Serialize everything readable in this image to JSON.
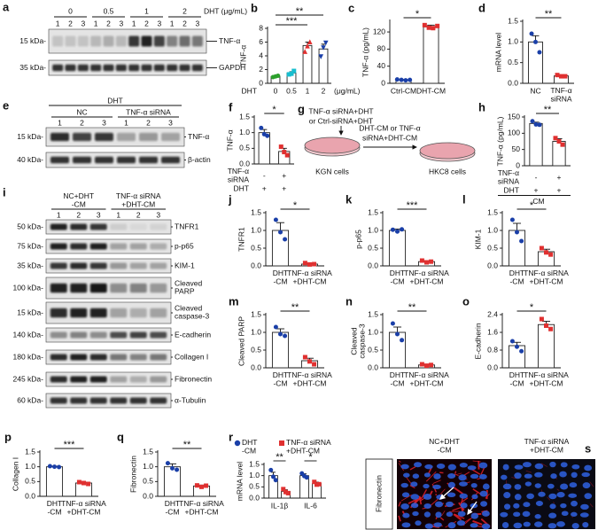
{
  "chart_data": [
    {
      "type": "bar",
      "label": "b",
      "ylabel": "TNF-α",
      "xlabel": "DHT",
      "xunit": "(μg/mL)",
      "categories": [
        "0",
        "0.5",
        "1",
        "2"
      ],
      "values": [
        1.0,
        1.5,
        5.5,
        5.0
      ],
      "errors": [
        0.1,
        0.2,
        0.5,
        0.7
      ],
      "points": [
        [
          0.9,
          1.0,
          1.1
        ],
        [
          1.3,
          1.4,
          1.8
        ],
        [
          4.6,
          5.4,
          6.0
        ],
        [
          3.9,
          5.2,
          5.9
        ]
      ],
      "colors": [
        "#2ca02c",
        "#17becf",
        "#e03030",
        "#1a3fa8"
      ],
      "markers": [
        "circle",
        "square",
        "triangle",
        "triangle-down"
      ],
      "ylim": [
        0,
        8
      ],
      "yticks": [
        0,
        2,
        4,
        6,
        8
      ],
      "annotations": [
        "***",
        "**"
      ]
    },
    {
      "type": "bar",
      "label": "c",
      "ylabel": "TNF-α (pg/mL)",
      "categories": [
        "Ctrl-CM",
        "DHT-CM"
      ],
      "values": [
        8,
        132
      ],
      "errors": [
        1,
        4
      ],
      "points": [
        [
          9,
          8,
          7,
          8
        ],
        [
          136,
          130,
          129,
          134
        ]
      ],
      "colors": [
        "#1a3fa8",
        "#e03030"
      ],
      "markers": [
        "circle",
        "square"
      ],
      "ylim": [
        0,
        145
      ],
      "yticks": [
        0,
        40,
        80,
        120
      ],
      "annotations": [
        "*"
      ]
    },
    {
      "type": "bar",
      "label": "d",
      "ylabel": "mRNA level",
      "categories": [
        "NC",
        "TNF-α\nsiRNA"
      ],
      "values": [
        1.0,
        0.18
      ],
      "errors": [
        0.15,
        0.02
      ],
      "points": [
        [
          1.2,
          1.0,
          0.75
        ],
        [
          0.2,
          0.17,
          0.17
        ]
      ],
      "colors": [
        "#1a3fa8",
        "#e03030"
      ],
      "markers": [
        "circle",
        "square"
      ],
      "ylim": [
        0,
        1.5
      ],
      "yticks": [
        {
          "value": 0,
          "label": "0.0"
        },
        {
          "value": 0.5,
          "label": "0.5"
        },
        {
          "value": 1,
          "label": "1.0"
        },
        {
          "value": 1.5,
          "label": "1.5"
        }
      ],
      "annotations": [
        "**"
      ]
    },
    {
      "type": "bar",
      "label": "f",
      "ylabel": "TNF-α",
      "categories": [
        null,
        null
      ],
      "rows": [
        {
          "label": "TNF-α\nsiRNA",
          "values": [
            "-",
            "+"
          ]
        },
        {
          "label": "DHT",
          "values": [
            "+",
            "+"
          ]
        }
      ],
      "values": [
        1.0,
        0.4
      ],
      "errors": [
        0.1,
        0.1
      ],
      "points": [
        [
          1.15,
          0.95,
          0.9
        ],
        [
          0.55,
          0.38,
          0.28
        ]
      ],
      "colors": [
        "#1a3fa8",
        "#e03030"
      ],
      "markers": [
        "circle",
        "square"
      ],
      "ylim": [
        0,
        1.5
      ],
      "yticks": [
        {
          "value": 0,
          "label": "0.0"
        },
        {
          "value": 0.5,
          "label": "0.5"
        },
        {
          "value": 1,
          "label": "1.0"
        },
        {
          "value": 1.5,
          "label": "1.5"
        }
      ],
      "annotations": [
        "*"
      ]
    },
    {
      "type": "bar",
      "label": "h",
      "ylabel": "TNF-α (pg/mL)",
      "categories": [
        null,
        null
      ],
      "rows": [
        {
          "label": "TNF-α\nsiRNA",
          "values": [
            "-",
            "+"
          ]
        },
        {
          "label": "DHT",
          "values": [
            "+",
            "+"
          ]
        }
      ],
      "group_label": "CM",
      "values": [
        130,
        75
      ],
      "errors": [
        4,
        8
      ],
      "points": [
        [
          137,
          127,
          126
        ],
        [
          85,
          75,
          65
        ]
      ],
      "colors": [
        "#1a3fa8",
        "#e03030"
      ],
      "markers": [
        "circle",
        "square"
      ],
      "ylim": [
        0,
        150
      ],
      "yticks": [
        0,
        50,
        100,
        150
      ],
      "annotations": [
        "**"
      ]
    },
    {
      "type": "bar",
      "label": "j",
      "ylabel": "TNFR1",
      "categories": [
        "DHT\n-CM",
        "TNF-α siRNA\n+DHT-CM"
      ],
      "values": [
        1.0,
        0.05
      ],
      "errors": [
        0.22,
        0.02
      ],
      "points": [
        [
          1.3,
          0.95,
          0.75
        ],
        [
          0.08,
          0.04,
          0.05
        ]
      ],
      "colors": [
        "#1a3fa8",
        "#e03030"
      ],
      "markers": [
        "circle",
        "square"
      ],
      "ylim": [
        0,
        1.5
      ],
      "yticks": [
        {
          "value": 0,
          "label": "0.0"
        },
        {
          "value": 0.5,
          "label": "0.5"
        },
        {
          "value": 1,
          "label": "1.0"
        },
        {
          "value": 1.5,
          "label": "1.5"
        }
      ],
      "annotations": [
        "*"
      ]
    },
    {
      "type": "bar",
      "label": "k",
      "ylabel": "p-p65",
      "categories": [
        "DHT\n-CM",
        "TNF-α siRNA\n+DHT-CM"
      ],
      "values": [
        1.0,
        0.12
      ],
      "errors": [
        0.04,
        0.02
      ],
      "points": [
        [
          1.02,
          0.97,
          1.03
        ],
        [
          0.15,
          0.1,
          0.12
        ]
      ],
      "colors": [
        "#1a3fa8",
        "#e03030"
      ],
      "markers": [
        "circle",
        "square"
      ],
      "ylim": [
        0,
        1.5
      ],
      "yticks": [
        {
          "value": 0,
          "label": "0.0"
        },
        {
          "value": 0.5,
          "label": "0.5"
        },
        {
          "value": 1,
          "label": "1.0"
        },
        {
          "value": 1.5,
          "label": "1.5"
        }
      ],
      "annotations": [
        "***"
      ]
    },
    {
      "type": "bar",
      "label": "l",
      "ylabel": "KIM-1",
      "categories": [
        "DHT\n-CM",
        "TNF-α siRNA\n+DHT-CM"
      ],
      "values": [
        1.0,
        0.4
      ],
      "errors": [
        0.2,
        0.07
      ],
      "points": [
        [
          1.3,
          0.95,
          0.7
        ],
        [
          0.5,
          0.38,
          0.32
        ]
      ],
      "colors": [
        "#1a3fa8",
        "#e03030"
      ],
      "markers": [
        "circle",
        "square"
      ],
      "ylim": [
        0,
        1.5
      ],
      "yticks": [
        {
          "value": 0,
          "label": "0.0"
        },
        {
          "value": 0.5,
          "label": "0.5"
        },
        {
          "value": 1,
          "label": "1.0"
        },
        {
          "value": 1.5,
          "label": "1.5"
        }
      ],
      "annotations": [
        "*"
      ]
    },
    {
      "type": "bar",
      "label": "m",
      "ylabel": "Cleaved PARP",
      "categories": [
        "DHT\n-CM",
        "TNF-α siRNA\n+DHT-CM"
      ],
      "values": [
        1.0,
        0.2
      ],
      "errors": [
        0.1,
        0.07
      ],
      "points": [
        [
          1.15,
          0.95,
          0.9
        ],
        [
          0.3,
          0.18,
          0.1
        ]
      ],
      "colors": [
        "#1a3fa8",
        "#e03030"
      ],
      "markers": [
        "circle",
        "square"
      ],
      "ylim": [
        0,
        1.5
      ],
      "yticks": [
        {
          "value": 0,
          "label": "0.0"
        },
        {
          "value": 0.5,
          "label": "0.5"
        },
        {
          "value": 1,
          "label": "1.0"
        },
        {
          "value": 1.5,
          "label": "1.5"
        }
      ],
      "annotations": [
        "**"
      ]
    },
    {
      "type": "bar",
      "label": "n",
      "ylabel": "Cleaved\ncaspase-3",
      "categories": [
        "DHT\n-CM",
        "TNF-α siRNA\n+DHT-CM"
      ],
      "values": [
        1.0,
        0.08
      ],
      "errors": [
        0.15,
        0.02
      ],
      "points": [
        [
          1.25,
          0.95,
          0.78
        ],
        [
          0.1,
          0.06,
          0.08
        ]
      ],
      "colors": [
        "#1a3fa8",
        "#e03030"
      ],
      "markers": [
        "circle",
        "square"
      ],
      "ylim": [
        0,
        1.5
      ],
      "yticks": [
        {
          "value": 0,
          "label": "0.0"
        },
        {
          "value": 0.5,
          "label": "0.5"
        },
        {
          "value": 1,
          "label": "1.0"
        },
        {
          "value": 1.5,
          "label": "1.5"
        }
      ],
      "annotations": [
        "**"
      ]
    },
    {
      "type": "bar",
      "label": "o",
      "ylabel": "E-cadherin",
      "categories": [
        "DHT\n-CM",
        "TNF-α siRNA\n+DHT-CM"
      ],
      "values": [
        1.0,
        1.95
      ],
      "errors": [
        0.15,
        0.15
      ],
      "points": [
        [
          1.2,
          0.95,
          0.75
        ],
        [
          2.2,
          1.9,
          1.75
        ]
      ],
      "colors": [
        "#1a3fa8",
        "#e03030"
      ],
      "markers": [
        "circle",
        "square"
      ],
      "ylim": [
        0,
        2.4
      ],
      "yticks": [
        {
          "value": 0,
          "label": "0.0"
        },
        {
          "value": 0.8,
          "label": "0.8"
        },
        {
          "value": 1.6,
          "label": "1.6"
        },
        {
          "value": 2.4,
          "label": "2.4"
        }
      ],
      "annotations": [
        "*"
      ]
    },
    {
      "type": "bar",
      "label": "p",
      "ylabel": "Collagen I",
      "categories": [
        "DHT\n-CM",
        "TNF-α siRNA\n+DHT-CM"
      ],
      "values": [
        1.0,
        0.45
      ],
      "errors": [
        0.02,
        0.03
      ],
      "points": [
        [
          1.02,
          1.0,
          0.99
        ],
        [
          0.48,
          0.45,
          0.42
        ]
      ],
      "colors": [
        "#1a3fa8",
        "#e03030"
      ],
      "markers": [
        "circle",
        "square"
      ],
      "ylim": [
        0,
        1.5
      ],
      "yticks": [
        {
          "value": 0,
          "label": "0.0"
        },
        {
          "value": 0.5,
          "label": "0.5"
        },
        {
          "value": 1,
          "label": "1.0"
        },
        {
          "value": 1.5,
          "label": "1.5"
        }
      ],
      "annotations": [
        "***"
      ]
    },
    {
      "type": "bar",
      "label": "q",
      "ylabel": "Fibronectin",
      "categories": [
        "DHT\n-CM",
        "TNF-α siRNA\n+DHT-CM"
      ],
      "values": [
        1.0,
        0.35
      ],
      "errors": [
        0.1,
        0.03
      ],
      "points": [
        [
          1.12,
          0.95,
          0.9
        ],
        [
          0.37,
          0.32,
          0.36
        ]
      ],
      "colors": [
        "#1a3fa8",
        "#e03030"
      ],
      "markers": [
        "circle",
        "square"
      ],
      "ylim": [
        0,
        1.5
      ],
      "yticks": [
        {
          "value": 0,
          "label": "0.0"
        },
        {
          "value": 0.5,
          "label": "0.5"
        },
        {
          "value": 1,
          "label": "1.0"
        },
        {
          "value": 1.5,
          "label": "1.5"
        }
      ],
      "annotations": [
        "**"
      ]
    },
    {
      "type": "bar",
      "label": "r",
      "ylabel": "mRNA level",
      "categories": [
        "IL-1β",
        "IL-6"
      ],
      "series": [
        {
          "name": "DHT\n-CM",
          "color": "#1a3fa8",
          "marker": "circle",
          "values": [
            1.0,
            1.0
          ],
          "errors": [
            0.15,
            0.08
          ],
          "points": [
            [
              1.25,
              0.95,
              0.8
            ],
            [
              1.1,
              0.98,
              0.92
            ]
          ]
        },
        {
          "name": "TNF-α siRNA\n+DHT-CM",
          "color": "#e03030",
          "marker": "square",
          "values": [
            0.3,
            0.65
          ],
          "errors": [
            0.07,
            0.06
          ],
          "points": [
            [
              0.4,
              0.27,
              0.22
            ],
            [
              0.72,
              0.6,
              0.62
            ]
          ]
        }
      ],
      "ylim": [
        0,
        1.5
      ],
      "yticks": [
        {
          "value": 0,
          "label": "0.0"
        },
        {
          "value": 0.5,
          "label": "0.5"
        },
        {
          "value": 1,
          "label": "1.0"
        },
        {
          "value": 1.5,
          "label": "1.5"
        }
      ],
      "annotations": [
        "**",
        "*"
      ]
    }
  ],
  "blots": [
    {
      "label": "a",
      "header": "DHT (μg/mL)",
      "groups": [
        "0",
        "0.5",
        "1",
        "2"
      ],
      "lanes": [
        "1",
        "2",
        "3"
      ],
      "rows": [
        {
          "marker": "15 kDa-",
          "name": "TNF-α"
        },
        {
          "marker": "35 kDa-",
          "name": "GAPDH"
        }
      ]
    },
    {
      "label": "e",
      "header": "DHT",
      "groups": [
        "NC",
        "TNF-α siRNA"
      ],
      "lanes": [
        "1",
        "2",
        "3"
      ],
      "rows": [
        {
          "marker": "15 kDa-",
          "name": "TNF-α"
        },
        {
          "marker": "40 kDa-",
          "name": "β-actin"
        }
      ]
    },
    {
      "label": "i",
      "groups": [
        "NC+DHT\n-CM",
        "TNF-α siRNA\n+DHT-CM"
      ],
      "lanes": [
        "1",
        "2",
        "3"
      ],
      "rows": [
        {
          "marker": "50 kDa-",
          "name": "TNFR1"
        },
        {
          "marker": "75 kDa-",
          "name": "p-p65"
        },
        {
          "marker": "35 kDa-",
          "name": "KIM-1"
        },
        {
          "marker": "100 kDa-",
          "name": "Cleaved\nPARP"
        },
        {
          "marker": "15 kDa-",
          "name": "Cleaved\ncaspase-3"
        },
        {
          "marker": "140 kDa-",
          "name": "E-cadherin"
        },
        {
          "marker": "180 kDa-",
          "name": "Collagen I"
        },
        {
          "marker": "245 kDa-",
          "name": "Fibronectin"
        },
        {
          "marker": "60 kDa-",
          "name": "α-Tubulin"
        }
      ]
    }
  ],
  "diagram": {
    "label": "g",
    "top_text": [
      "TNF-α siRNA+DHT",
      "or Ctrl-siRNA+DHT"
    ],
    "arrow_text": [
      "DHT-CM or TNF-α",
      "siRNA+DHT-CM"
    ],
    "left_cells": "KGN cells",
    "right_cells": "HKC8 cells"
  },
  "micrograph": {
    "label": "s",
    "stain": "Fibronectin",
    "panels": [
      "NC+DHT\n-CM",
      "TNF-α siRNA\n+DHT-CM"
    ]
  }
}
